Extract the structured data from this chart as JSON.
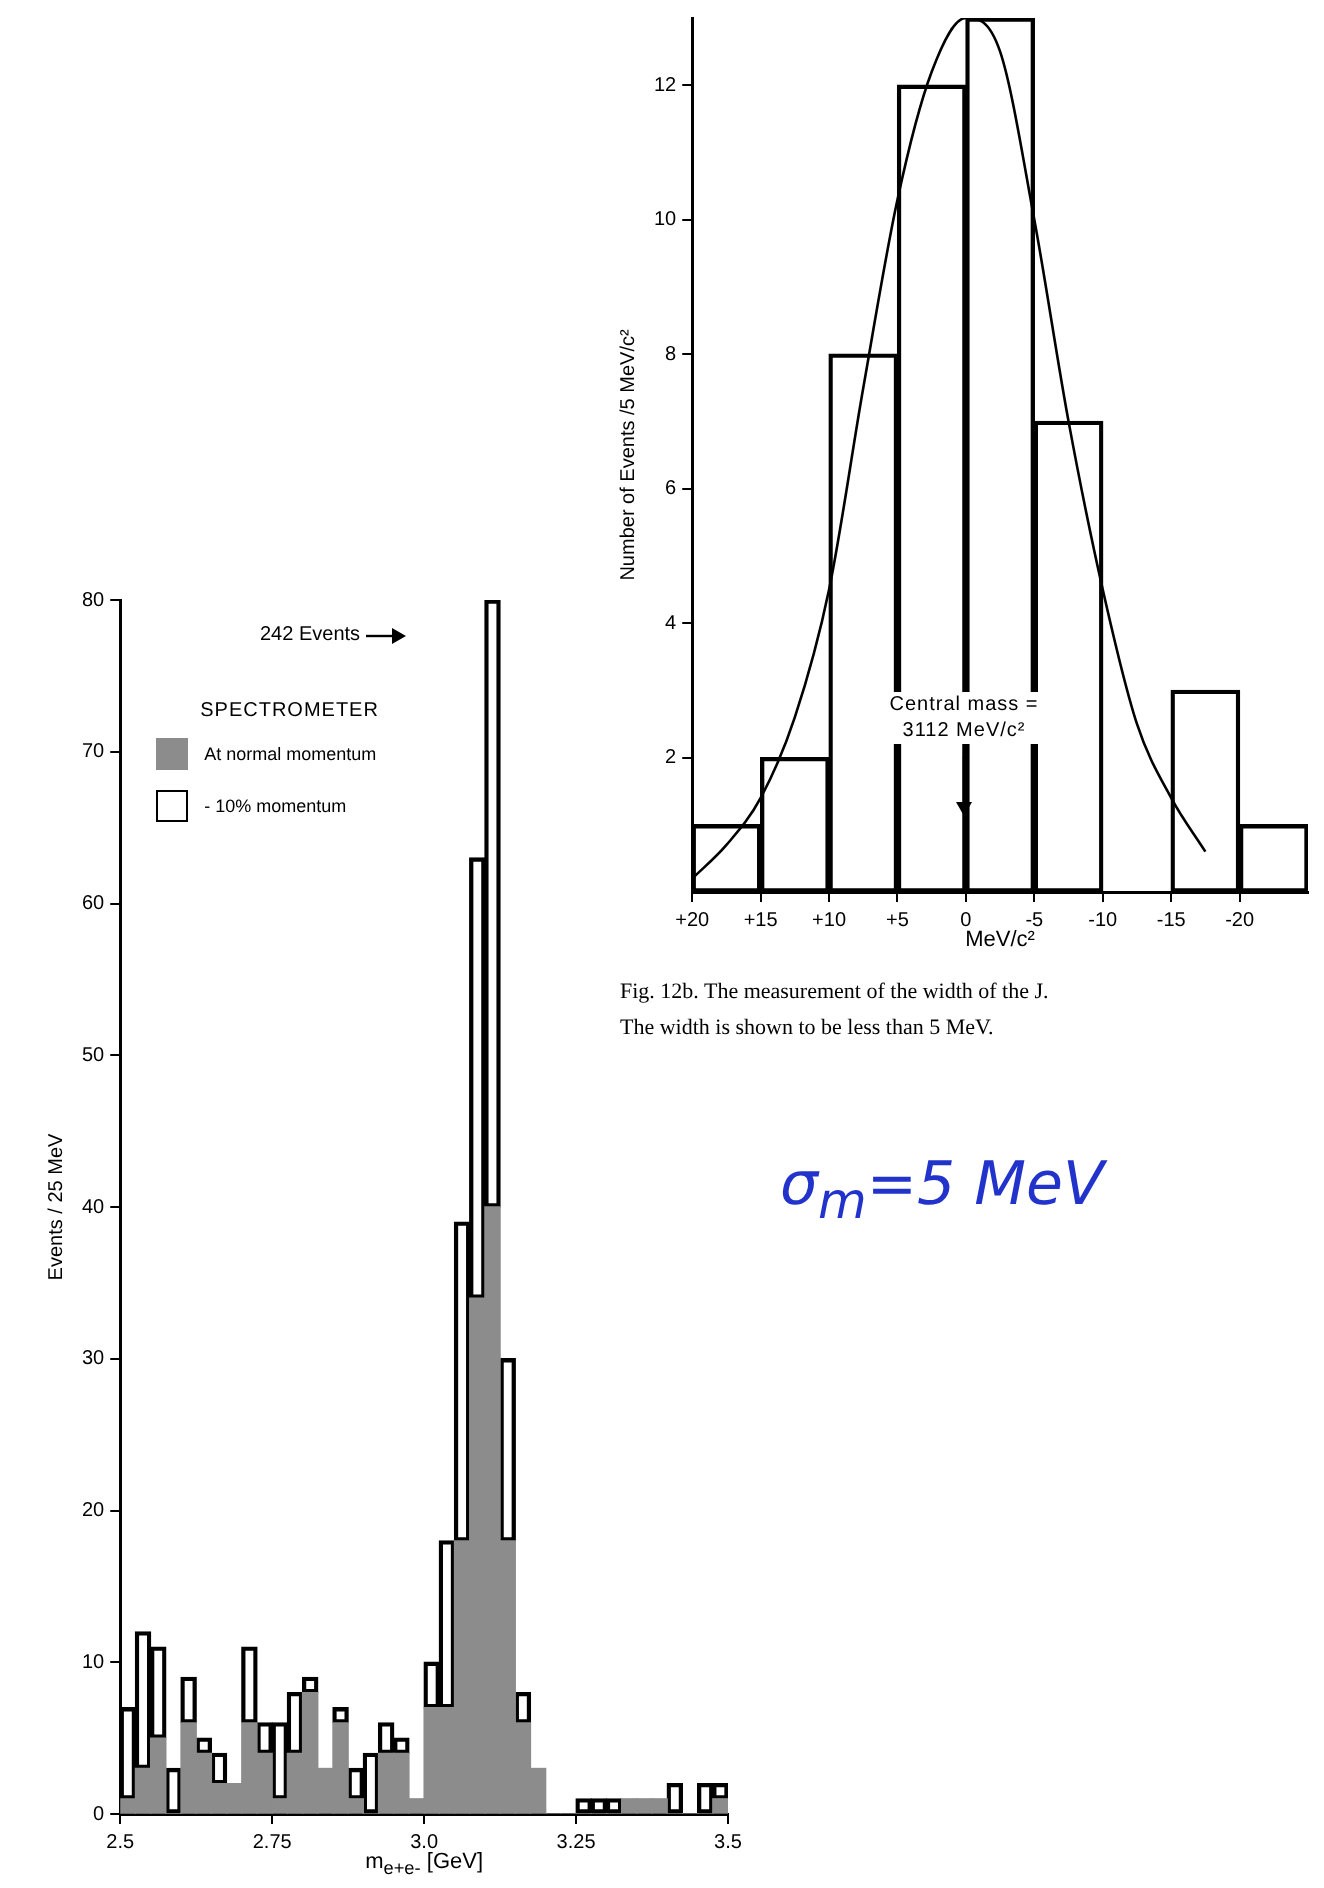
{
  "chart_data": [
    {
      "type": "bar",
      "xlabel": "MeV/c²",
      "ylabel": "Number of Events /5 MeV/c²",
      "series": [
        {
          "type": "bar",
          "color": "#000000",
          "x": [
            17.5,
            12.5,
            7.5,
            2.5,
            -2.5,
            -7.5,
            -12.5,
            -17.5,
            -22.5
          ],
          "values": [
            1,
            2,
            8,
            12,
            13,
            7,
            0,
            3,
            1
          ]
        },
        {
          "type": "line",
          "color": "#000000",
          "x": [
            20,
            17.5,
            15,
            12.5,
            10,
            7.5,
            5,
            2.5,
            0,
            -2.5,
            -5,
            -7.5,
            -10,
            -12.5,
            -15,
            -17.5
          ],
          "values": [
            0.2,
            0.7,
            1.4,
            2.6,
            4.5,
            7.5,
            10.3,
            12.2,
            13,
            12.5,
            10,
            7,
            4.5,
            2.5,
            1.4,
            0.6
          ]
        }
      ],
      "xlim": [
        20,
        -25
      ],
      "xticks": [
        {
          "value": 20,
          "label": "+20"
        },
        {
          "value": 15,
          "label": "+15"
        },
        {
          "value": 10,
          "label": "+10"
        },
        {
          "value": 5,
          "label": "+5"
        },
        0,
        -5,
        -10,
        -15,
        -20
      ],
      "ylim": [
        0,
        13
      ],
      "yticks": [
        2,
        4,
        6,
        8,
        10,
        12
      ],
      "annotations": [
        "Central mass = 3112 MeV/c²",
        "Fig. 12b. The measurement of the width of the J.",
        "The width is shown to be less than 5 MeV.",
        "σ$_{m}$=5 MeV"
      ]
    },
    {
      "type": "bar",
      "stacked": true,
      "xlabel": "m$_{e+e-}$ [GeV]",
      "ylabel": "Events / 25 MeV",
      "legend": "top left",
      "legend_title": "SPECTROMETER",
      "x": [
        2.5125,
        2.5375,
        2.5625,
        2.5875,
        2.6125,
        2.6375,
        2.6625,
        2.6875,
        2.7125,
        2.7375,
        2.7625,
        2.7875,
        2.8125,
        2.8375,
        2.8625,
        2.8875,
        2.9125,
        2.9375,
        2.9625,
        2.9875,
        3.0125,
        3.0375,
        3.0625,
        3.0875,
        3.1125,
        3.1375,
        3.1625,
        3.1875,
        3.2125,
        3.2375,
        3.2625,
        3.2875,
        3.3125,
        3.3375,
        3.3625,
        3.3875,
        3.4125,
        3.4375,
        3.4625,
        3.4875
      ],
      "series": [
        {
          "name": "At normal momentum",
          "color": "#8c8c8c",
          "values": [
            1,
            3,
            5,
            0,
            6,
            4,
            2,
            2,
            6,
            4,
            1,
            4,
            8,
            3,
            6,
            1,
            0,
            4,
            4,
            1,
            7,
            7,
            18,
            34,
            40,
            18,
            6,
            3,
            0,
            0,
            0,
            0,
            0,
            1,
            1,
            1,
            0,
            0,
            0,
            1
          ]
        },
        {
          "name": "- 10% momentum",
          "color": "#000000",
          "values": [
            6,
            9,
            6,
            3,
            3,
            1,
            2,
            0,
            5,
            2,
            5,
            4,
            1,
            0,
            1,
            2,
            4,
            2,
            1,
            0,
            3,
            11,
            21,
            29,
            40,
            12,
            2,
            0,
            0,
            0,
            1,
            1,
            1,
            0,
            0,
            0,
            2,
            0,
            2,
            1
          ]
        }
      ],
      "xlim": [
        2.5,
        3.5
      ],
      "xticks": [
        2.5,
        2.75,
        {
          "value": 3,
          "label": "3.0"
        },
        3.25,
        3.5
      ],
      "ylim": [
        0,
        80
      ],
      "yticks": [
        0,
        10,
        20,
        30,
        40,
        50,
        60,
        70,
        80
      ],
      "annotations": [
        "242 Events"
      ]
    }
  ]
}
